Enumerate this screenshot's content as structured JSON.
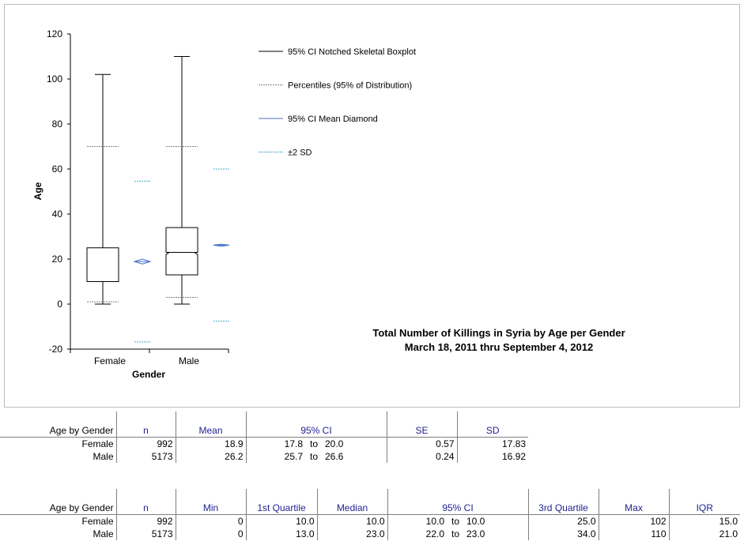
{
  "chart_data": {
    "type": "boxplot",
    "title": "Total Number of Killings in Syria by Age per Gender",
    "subtitle": "March 18, 2011 thru September 4, 2012",
    "xlabel": "Gender",
    "ylabel": "Age",
    "categories": [
      "Female",
      "Male"
    ],
    "ylim": [
      -20,
      120
    ],
    "yticks": [
      "-20",
      "0",
      "20",
      "40",
      "60",
      "80",
      "100",
      "120"
    ],
    "legend": [
      "95% CI Notched Skeletal Boxplot",
      "Percentiles (95% of Distribution)",
      "95% CI Mean Diamond",
      "±2 SD"
    ],
    "legend_position": "top-right",
    "colors": {
      "box": "#000000",
      "percentile": "#808080",
      "mean": "#4472c4",
      "sd": "#4bacc6"
    },
    "series": [
      {
        "category": "Female",
        "min": 0,
        "q1": 10,
        "median": 10,
        "q3": 25,
        "max": 102,
        "median_ci": [
          10,
          10
        ],
        "p2_5": 1,
        "p97_5": 70,
        "mean": 18.9,
        "mean_ci": [
          17.8,
          20.0
        ],
        "sd_low": -16.8,
        "sd_high": 54.6
      },
      {
        "category": "Male",
        "min": 0,
        "q1": 13,
        "median": 23,
        "q3": 34,
        "max": 110,
        "median_ci": [
          22,
          23
        ],
        "p2_5": 3,
        "p97_5": 70,
        "mean": 26.2,
        "mean_ci": [
          25.7,
          26.6
        ],
        "sd_low": -7.6,
        "sd_high": 60.0
      }
    ]
  },
  "table1": {
    "headers": [
      "Age by Gender",
      "n",
      "Mean",
      "95% CI",
      "SE",
      "SD"
    ],
    "rows": [
      {
        "label": "Female",
        "n": "992",
        "mean": "18.9",
        "ci_low": "17.8",
        "to": "to",
        "ci_high": "20.0",
        "se": "0.57",
        "sd": "17.83"
      },
      {
        "label": "Male",
        "n": "5173",
        "mean": "26.2",
        "ci_low": "25.7",
        "to": "to",
        "ci_high": "26.6",
        "se": "0.24",
        "sd": "16.92"
      }
    ]
  },
  "table2": {
    "headers": [
      "Age by Gender",
      "n",
      "Min",
      "1st Quartile",
      "Median",
      "95% CI",
      "3rd Quartile",
      "Max",
      "IQR"
    ],
    "rows": [
      {
        "label": "Female",
        "n": "992",
        "min": "0",
        "q1": "10.0",
        "median": "10.0",
        "ci_low": "10.0",
        "to": "to",
        "ci_high": "10.0",
        "q3": "25.0",
        "max": "102",
        "iqr": "15.0"
      },
      {
        "label": "Male",
        "n": "5173",
        "min": "0",
        "q1": "13.0",
        "median": "23.0",
        "ci_low": "22.0",
        "to": "to",
        "ci_high": "23.0",
        "q3": "34.0",
        "max": "110",
        "iqr": "21.0"
      }
    ]
  }
}
